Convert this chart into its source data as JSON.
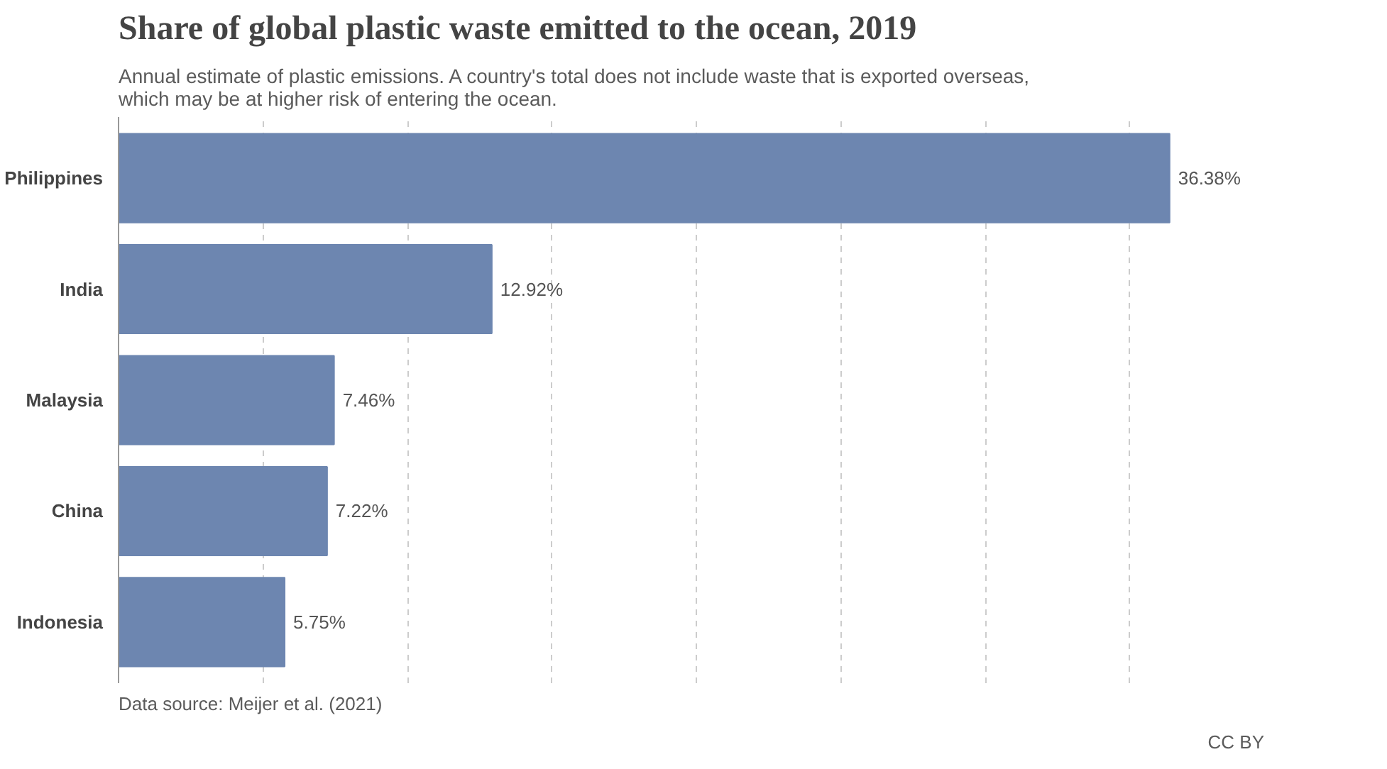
{
  "chart_data": {
    "type": "bar",
    "orientation": "horizontal",
    "title": "Share of global plastic waste emitted to the ocean, 2019",
    "subtitle": "Annual estimate of plastic emissions. A country's total does not include waste that is exported overseas, which may be at higher risk of entering the ocean.",
    "categories": [
      "Philippines",
      "India",
      "Malaysia",
      "China",
      "Indonesia"
    ],
    "values": [
      36.38,
      12.92,
      7.46,
      7.22,
      5.75
    ],
    "value_labels": [
      "36.38%",
      "12.92%",
      "7.46%",
      "7.22%",
      "5.75%"
    ],
    "color": "#6d86b0",
    "xticks": [
      {
        "value": 0,
        "label": null
      },
      {
        "value": 5,
        "label": null
      },
      {
        "value": 10,
        "label": null
      },
      {
        "value": 15,
        "label": null
      },
      {
        "value": 20,
        "label": null
      },
      {
        "value": 25,
        "label": null
      },
      {
        "value": 30,
        "label": null
      },
      {
        "value": 35,
        "label": null
      }
    ],
    "grid": "x",
    "tick_labels": "y",
    "annotations": [
      "Data source: Meijer et al. (2021)",
      "CC BY"
    ]
  }
}
